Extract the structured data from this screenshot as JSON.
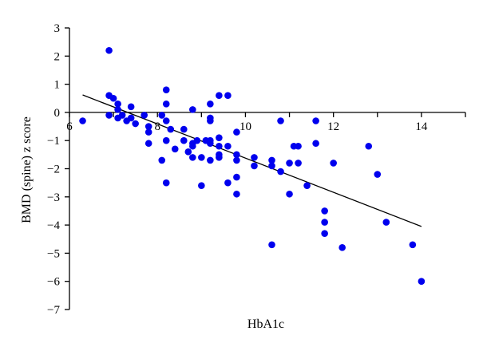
{
  "chart_data": {
    "type": "scatter",
    "title": "",
    "xlabel": "HbA1c",
    "ylabel": "BMD (spine) z score",
    "xlim": [
      6,
      15
    ],
    "ylim": [
      -7,
      3
    ],
    "x_ticks": [
      6,
      8,
      10,
      12,
      14
    ],
    "y_ticks": [
      3,
      2,
      1,
      0,
      -1,
      -2,
      -3,
      -4,
      -5,
      -6,
      -7
    ],
    "x_axis_at_y": 0,
    "grid": false,
    "legend": "none",
    "point_color": "#0000ee",
    "line_color": "#000000",
    "trendline": {
      "x": [
        6.3,
        14.0
      ],
      "y": [
        0.62,
        -4.05
      ]
    },
    "series": [
      {
        "points": [
          [
            6.3,
            -0.3
          ],
          [
            6.9,
            2.2
          ],
          [
            6.9,
            0.6
          ],
          [
            6.9,
            -0.1
          ],
          [
            7.0,
            0.5
          ],
          [
            7.1,
            0.3
          ],
          [
            7.1,
            0.1
          ],
          [
            7.1,
            -0.2
          ],
          [
            7.2,
            -0.1
          ],
          [
            7.3,
            -0.3
          ],
          [
            7.4,
            0.2
          ],
          [
            7.4,
            -0.2
          ],
          [
            7.5,
            -0.4
          ],
          [
            7.7,
            -0.1
          ],
          [
            7.8,
            -0.5
          ],
          [
            7.8,
            -0.7
          ],
          [
            7.8,
            -1.1
          ],
          [
            8.1,
            -0.1
          ],
          [
            8.1,
            -1.7
          ],
          [
            8.2,
            0.8
          ],
          [
            8.2,
            0.3
          ],
          [
            8.2,
            -0.3
          ],
          [
            8.2,
            -1.0
          ],
          [
            8.2,
            -2.5
          ],
          [
            8.3,
            -0.6
          ],
          [
            8.4,
            -1.3
          ],
          [
            8.6,
            -0.6
          ],
          [
            8.6,
            -1.0
          ],
          [
            8.7,
            -1.4
          ],
          [
            8.8,
            0.1
          ],
          [
            8.8,
            -1.1
          ],
          [
            8.8,
            -1.2
          ],
          [
            8.8,
            -1.6
          ],
          [
            8.9,
            -1.0
          ],
          [
            9.0,
            -1.6
          ],
          [
            9.0,
            -2.6
          ],
          [
            9.1,
            -1.0
          ],
          [
            9.2,
            0.3
          ],
          [
            9.2,
            -0.2
          ],
          [
            9.2,
            -0.3
          ],
          [
            9.2,
            -1.0
          ],
          [
            9.2,
            -1.1
          ],
          [
            9.2,
            -1.7
          ],
          [
            9.4,
            0.6
          ],
          [
            9.4,
            -0.9
          ],
          [
            9.4,
            -1.2
          ],
          [
            9.4,
            -1.5
          ],
          [
            9.4,
            -1.6
          ],
          [
            9.6,
            0.6
          ],
          [
            9.6,
            -1.2
          ],
          [
            9.6,
            -2.5
          ],
          [
            9.8,
            -0.7
          ],
          [
            9.8,
            -1.5
          ],
          [
            9.8,
            -1.7
          ],
          [
            9.8,
            -2.3
          ],
          [
            9.8,
            -2.9
          ],
          [
            10.2,
            -1.9
          ],
          [
            10.2,
            -1.6
          ],
          [
            10.6,
            -1.7
          ],
          [
            10.6,
            -1.9
          ],
          [
            10.6,
            -4.7
          ],
          [
            10.8,
            -0.3
          ],
          [
            10.8,
            -2.1
          ],
          [
            11.0,
            -1.8
          ],
          [
            11.0,
            -2.9
          ],
          [
            11.1,
            -1.2
          ],
          [
            11.2,
            -1.2
          ],
          [
            11.2,
            -1.8
          ],
          [
            11.4,
            -2.6
          ],
          [
            11.6,
            -0.3
          ],
          [
            11.6,
            -1.1
          ],
          [
            11.8,
            -3.5
          ],
          [
            11.8,
            -3.9
          ],
          [
            11.8,
            -4.3
          ],
          [
            12.0,
            -1.8
          ],
          [
            12.2,
            -4.8
          ],
          [
            12.8,
            -1.2
          ],
          [
            13.0,
            -2.2
          ],
          [
            13.2,
            -3.9
          ],
          [
            13.8,
            -4.7
          ],
          [
            14.0,
            -6.0
          ]
        ]
      }
    ]
  }
}
